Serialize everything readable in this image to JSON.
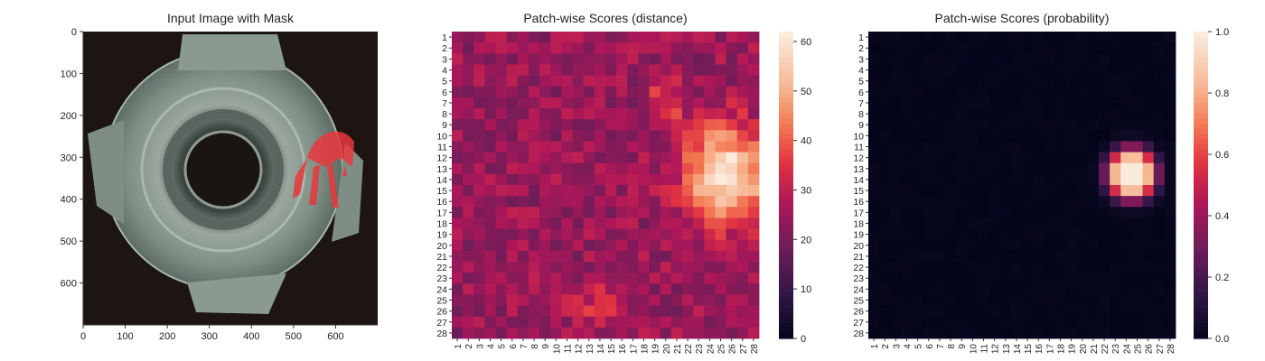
{
  "panels": {
    "image_title": "Input Image with Mask",
    "distance_title": "Patch-wise Scores (distance)",
    "probability_title": "Patch-wise Scores (probability)"
  },
  "chart_data": [
    {
      "type": "image",
      "title": "Input Image with Mask",
      "xlim": [
        0,
        700
      ],
      "ylim": [
        700,
        0
      ],
      "xticks": [
        "0",
        "100",
        "200",
        "300",
        "400",
        "500",
        "600"
      ],
      "yticks": [
        "0",
        "100",
        "200",
        "300",
        "400",
        "500",
        "600"
      ],
      "mask_color": "#e8383d"
    },
    {
      "type": "heatmap",
      "title": "Patch-wise Scores (distance)",
      "rows": 28,
      "cols": 28,
      "xticks": [
        "1",
        "2",
        "3",
        "4",
        "5",
        "6",
        "7",
        "8",
        "9",
        "10",
        "11",
        "12",
        "13",
        "14",
        "15",
        "16",
        "17",
        "18",
        "19",
        "20",
        "21",
        "22",
        "23",
        "24",
        "25",
        "26",
        "27",
        "28"
      ],
      "yticks": [
        "1",
        "2",
        "3",
        "4",
        "5",
        "6",
        "7",
        "8",
        "9",
        "10",
        "11",
        "12",
        "13",
        "14",
        "15",
        "16",
        "17",
        "18",
        "19",
        "20",
        "21",
        "22",
        "23",
        "24",
        "25",
        "26",
        "27",
        "28"
      ],
      "colorbar_ticks": [
        "0",
        "10",
        "20",
        "30",
        "40",
        "50",
        "60"
      ],
      "vmin": 0,
      "vmax": 62,
      "base_value": 25,
      "hotspot": {
        "center_col": 25.5,
        "center_row": 13.5,
        "peak": 61,
        "spread": 2.6
      },
      "secondary": {
        "center_col": 14,
        "center_row": 25.5,
        "peak": 8,
        "spread": 2.0
      }
    },
    {
      "type": "heatmap",
      "title": "Patch-wise Scores (probability)",
      "rows": 28,
      "cols": 28,
      "xticks": [
        "1",
        "2",
        "3",
        "4",
        "5",
        "6",
        "7",
        "8",
        "9",
        "10",
        "11",
        "12",
        "13",
        "14",
        "15",
        "16",
        "17",
        "18",
        "19",
        "20",
        "21",
        "22",
        "23",
        "24",
        "25",
        "26",
        "27",
        "28"
      ],
      "yticks": [
        "1",
        "2",
        "3",
        "4",
        "5",
        "6",
        "7",
        "8",
        "9",
        "10",
        "11",
        "12",
        "13",
        "14",
        "15",
        "16",
        "17",
        "18",
        "19",
        "20",
        "21",
        "22",
        "23",
        "24",
        "25",
        "26",
        "27",
        "28"
      ],
      "colorbar_ticks": [
        "0.0",
        "0.2",
        "0.4",
        "0.6",
        "0.8",
        "1.0"
      ],
      "vmin": 0.0,
      "vmax": 1.0,
      "base_value": 0.02,
      "hotspot": {
        "center_col": 24.5,
        "center_row": 13.5,
        "peak": 1.0,
        "spread": 2.3
      }
    }
  ]
}
